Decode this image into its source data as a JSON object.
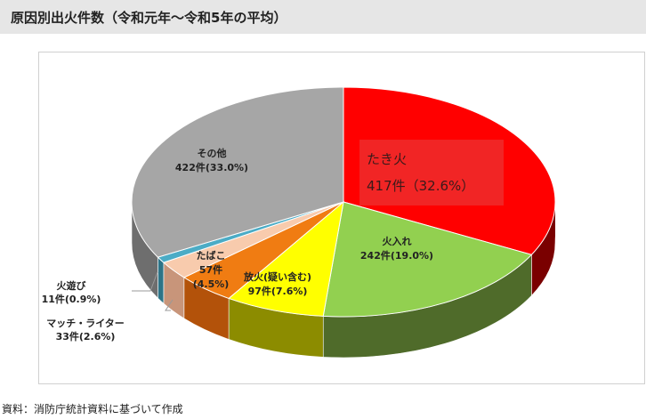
{
  "title": "原因別出火件数（令和元年～令和5年の平均）",
  "source": "資料：消防庁統計資料に基づいて作成",
  "chart_data": {
    "type": "pie",
    "title": "原因別出火件数（令和元年～令和5年の平均）",
    "slices": [
      {
        "name": "たき火",
        "value": 417,
        "count_label": "417件",
        "percent_label": "（32.6%）",
        "color": "#ff0000",
        "side_color": "#7a0000"
      },
      {
        "name": "火入れ",
        "value": 242,
        "count_label": "242件",
        "percent_label": "(19.0%)",
        "color": "#92d050",
        "side_color": "#4f6b2a"
      },
      {
        "name": "放火(疑い含む)",
        "value": 97,
        "count_label": "97件",
        "percent_label": "(7.6%)",
        "color": "#ffff00",
        "side_color": "#8c8c00"
      },
      {
        "name": "たばこ",
        "value": 57,
        "count_label": "57件",
        "percent_label": "(4.5%)",
        "color": "#f07c12",
        "side_color": "#b3520a"
      },
      {
        "name": "マッチ・ライター",
        "value": 33,
        "count_label": "33件",
        "percent_label": "(2.6%)",
        "color": "#f8cbad",
        "side_color": "#c8957a"
      },
      {
        "name": "火遊び",
        "value": 11,
        "count_label": "11件",
        "percent_label": "(0.9%)",
        "color": "#4bacc6",
        "side_color": "#2d7487"
      },
      {
        "name": "その他",
        "value": 422,
        "count_label": "422件",
        "percent_label": "(33.0%)",
        "color": "#a6a6a6",
        "side_color": "#6e6e6e"
      }
    ],
    "legend": "none"
  }
}
